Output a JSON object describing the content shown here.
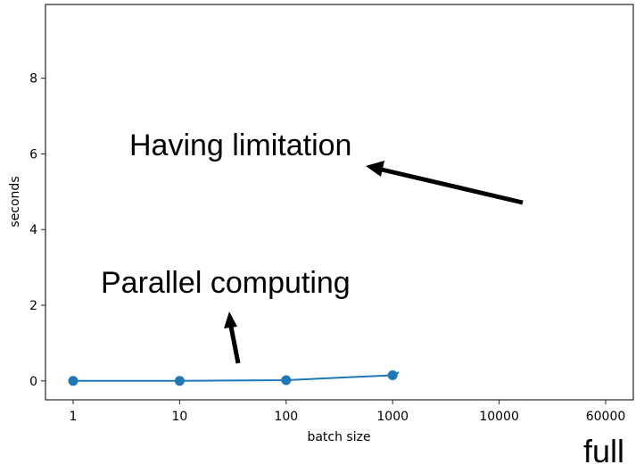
{
  "chart_data": {
    "type": "line",
    "title": "",
    "xlabel": "batch size",
    "ylabel": "seconds",
    "categories": [
      "1",
      "10",
      "100",
      "1000",
      "10000",
      "60000"
    ],
    "series": [
      {
        "values": [
          0.0,
          0.0,
          0.02,
          0.15,
          null,
          null
        ],
        "color": "#1f77b4"
      }
    ],
    "ylim": [
      -0.5,
      9.95
    ],
    "yticks": [
      "0",
      "2",
      "4",
      "6",
      "8"
    ],
    "grid": false,
    "annotations": [
      {
        "text": "Having limitation"
      },
      {
        "text": "Parallel computing"
      }
    ],
    "corner_label": "full"
  }
}
